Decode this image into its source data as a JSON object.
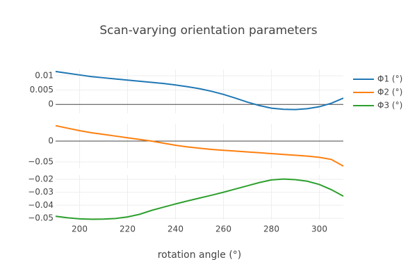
{
  "chart_data": {
    "type": "line",
    "title": "Scan-varying orientation parameters",
    "xlabel": "rotation angle (°)",
    "x": [
      190,
      195,
      200,
      205,
      210,
      215,
      220,
      225,
      230,
      235,
      240,
      245,
      250,
      255,
      260,
      265,
      270,
      275,
      280,
      285,
      290,
      295,
      300,
      305,
      310
    ],
    "xlim": [
      190,
      310
    ],
    "xticks": [
      200,
      220,
      240,
      260,
      280,
      300
    ],
    "grid": true,
    "series": [
      {
        "name": "Φ1 (°)",
        "color": "#1f77b4",
        "ylim": [
          -0.0031,
          0.0122
        ],
        "yticks": [
          0.01,
          0.005,
          0
        ],
        "values": [
          0.0115,
          0.0109,
          0.0103,
          0.0097,
          0.0093,
          0.0089,
          0.0085,
          0.0081,
          0.0077,
          0.0073,
          0.0068,
          0.0062,
          0.0055,
          0.0046,
          0.0035,
          0.0022,
          0.0008,
          -0.0004,
          -0.0013,
          -0.0017,
          -0.0018,
          -0.0015,
          -0.0008,
          0.0004,
          0.0022
        ]
      },
      {
        "name": "Φ2 (°)",
        "color": "#ff7f0e",
        "ylim": [
          -0.065,
          0.0417
        ],
        "yticks": [
          0,
          {
            "value": -0.05,
            "label": "−0.05"
          }
        ],
        "values": [
          0.037,
          0.031,
          0.025,
          0.02,
          0.016,
          0.012,
          0.008,
          0.004,
          0.0,
          -0.005,
          -0.01,
          -0.014,
          -0.017,
          -0.02,
          -0.022,
          -0.024,
          -0.026,
          -0.028,
          -0.03,
          -0.032,
          -0.034,
          -0.036,
          -0.039,
          -0.044,
          -0.06
        ]
      },
      {
        "name": "Φ3 (°)",
        "color": "#2ca02c",
        "ylim": [
          -0.0511,
          -0.0168
        ],
        "yticks": [
          {
            "value": -0.02,
            "label": "−0.02"
          },
          {
            "value": -0.03,
            "label": "−0.03"
          },
          {
            "value": -0.04,
            "label": "−0.04"
          },
          {
            "value": -0.05,
            "label": "−0.05"
          }
        ],
        "values": [
          -0.0485,
          -0.0497,
          -0.0505,
          -0.0508,
          -0.0507,
          -0.0502,
          -0.049,
          -0.047,
          -0.044,
          -0.0415,
          -0.039,
          -0.0367,
          -0.0345,
          -0.0323,
          -0.03,
          -0.0275,
          -0.025,
          -0.0225,
          -0.0205,
          -0.0198,
          -0.0203,
          -0.0215,
          -0.024,
          -0.028,
          -0.033
        ]
      }
    ]
  }
}
